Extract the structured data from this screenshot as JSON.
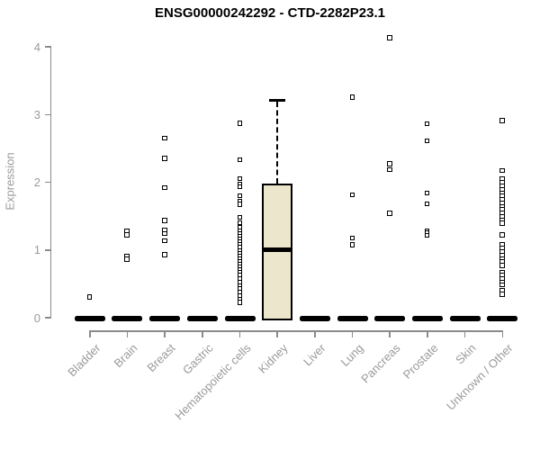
{
  "colors": {
    "box_fill": "#ebe6cc",
    "box_border": "#000000",
    "axis": "#8b8b8b",
    "tick_text": "#9a9a9a",
    "title_text": "#000000",
    "background": "#ffffff"
  },
  "chart_data": {
    "type": "boxplot",
    "title": "ENSG00000242292 - CTD-2282P23.1",
    "xlabel": "",
    "ylabel": "Expression",
    "ylim": [
      0,
      4
    ],
    "yticks": [
      0,
      1,
      2,
      3,
      4
    ],
    "grid": "off",
    "legend": "none",
    "categories": [
      "Bladder",
      "Brain",
      "Breast",
      "Gastric",
      "Hematopoietic cells",
      "Kidney",
      "Liver",
      "Lung",
      "Pancreas",
      "Prostate",
      "Skin",
      "Unknown / Other"
    ],
    "boxes": [
      {
        "category": "Bladder",
        "stats": {
          "whisker_low": 0,
          "q1": 0,
          "median": 0,
          "q3": 0,
          "whisker_high": 0
        },
        "outliers": [
          0.3
        ]
      },
      {
        "category": "Brain",
        "stats": {
          "whisker_low": 0,
          "q1": 0,
          "median": 0,
          "q3": 0,
          "whisker_high": 0
        },
        "outliers": [
          1.28,
          1.22,
          0.9,
          0.86
        ]
      },
      {
        "category": "Breast",
        "stats": {
          "whisker_low": 0,
          "q1": 0,
          "median": 0,
          "q3": 0,
          "whisker_high": 0
        },
        "outliers": [
          2.65,
          2.35,
          1.92,
          1.43,
          1.29,
          1.24,
          1.13,
          0.93
        ]
      },
      {
        "category": "Gastric",
        "stats": {
          "whisker_low": 0,
          "q1": 0,
          "median": 0,
          "q3": 0,
          "whisker_high": 0
        },
        "outliers": []
      },
      {
        "category": "Hematopoietic cells",
        "stats": {
          "whisker_low": 0,
          "q1": 0,
          "median": 0,
          "q3": 0,
          "whisker_high": 0
        },
        "outliers": [
          2.87,
          2.33,
          2.05,
          1.97,
          1.93,
          1.8,
          1.72,
          1.67,
          1.48,
          1.4,
          1.33,
          1.27,
          1.23,
          1.19,
          1.15,
          1.11,
          1.07,
          1.03,
          0.99,
          0.95,
          0.91,
          0.87,
          0.83,
          0.79,
          0.75,
          0.71,
          0.67,
          0.62,
          0.57,
          0.52,
          0.47,
          0.42,
          0.37,
          0.32,
          0.27,
          0.22
        ]
      },
      {
        "category": "Kidney",
        "stats": {
          "whisker_low": 0,
          "q1": 0,
          "median": 1.0,
          "q3": 1.97,
          "whisker_high": 3.21
        },
        "outliers": []
      },
      {
        "category": "Liver",
        "stats": {
          "whisker_low": 0,
          "q1": 0,
          "median": 0,
          "q3": 0,
          "whisker_high": 0
        },
        "outliers": []
      },
      {
        "category": "Lung",
        "stats": {
          "whisker_low": 0,
          "q1": 0,
          "median": 0,
          "q3": 0,
          "whisker_high": 0
        },
        "outliers": [
          3.25,
          1.81,
          1.17,
          1.07
        ]
      },
      {
        "category": "Pancreas",
        "stats": {
          "whisker_low": 0,
          "q1": 0,
          "median": 0,
          "q3": 0,
          "whisker_high": 0
        },
        "outliers": [
          4.13,
          2.27,
          2.18,
          1.54
        ]
      },
      {
        "category": "Prostate",
        "stats": {
          "whisker_low": 0,
          "q1": 0,
          "median": 0,
          "q3": 0,
          "whisker_high": 0
        },
        "outliers": [
          2.86,
          2.61,
          1.84,
          1.68,
          1.28,
          1.25,
          1.21
        ]
      },
      {
        "category": "Skin",
        "stats": {
          "whisker_low": 0,
          "q1": 0,
          "median": 0,
          "q3": 0,
          "whisker_high": 0
        },
        "outliers": []
      },
      {
        "category": "Unknown / Other",
        "stats": {
          "whisker_low": 0,
          "q1": 0,
          "median": 0,
          "q3": 0,
          "whisker_high": 0
        },
        "outliers": [
          2.91,
          2.17,
          2.04,
          1.99,
          1.94,
          1.89,
          1.84,
          1.79,
          1.74,
          1.69,
          1.64,
          1.59,
          1.54,
          1.49,
          1.44,
          1.39,
          1.22,
          1.07,
          1.02,
          0.97,
          0.92,
          0.87,
          0.82,
          0.77,
          0.67,
          0.62,
          0.57,
          0.52,
          0.48,
          0.4,
          0.34
        ]
      }
    ]
  }
}
